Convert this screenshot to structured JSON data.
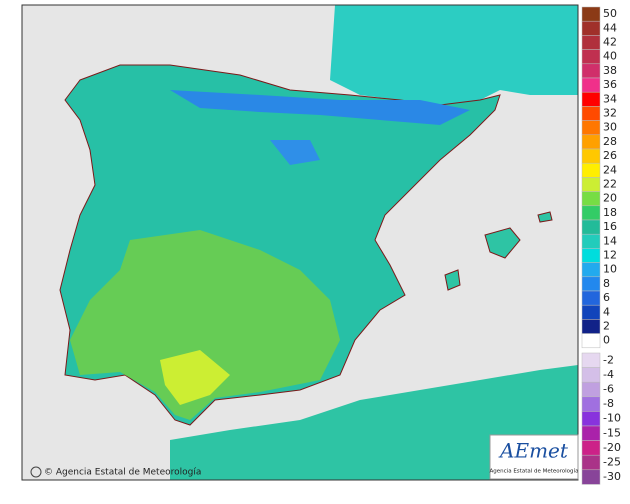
{
  "credit": "© Agencia Estatal de Meteorología",
  "logo": {
    "brand": "AEmet",
    "subtitle": "Agencia Estatal de Meteorología"
  },
  "legend": {
    "upper": [
      {
        "label": 50,
        "color": "#8b3a16"
      },
      {
        "label": 44,
        "color": "#a0302a"
      },
      {
        "label": 42,
        "color": "#b0303c"
      },
      {
        "label": 40,
        "color": "#c03050"
      },
      {
        "label": 38,
        "color": "#d02f6a"
      },
      {
        "label": 36,
        "color": "#f0308a"
      },
      {
        "label": 34,
        "color": "#ff0000"
      },
      {
        "label": 32,
        "color": "#ff4a00"
      },
      {
        "label": 30,
        "color": "#ff7700"
      },
      {
        "label": 28,
        "color": "#ffa000"
      },
      {
        "label": 26,
        "color": "#ffc800"
      },
      {
        "label": 24,
        "color": "#ffee00"
      },
      {
        "label": 22,
        "color": "#ccee33"
      },
      {
        "label": 20,
        "color": "#77dd44"
      },
      {
        "label": 18,
        "color": "#33cc66"
      },
      {
        "label": 16,
        "color": "#22bb99"
      },
      {
        "label": 14,
        "color": "#22ccbb"
      },
      {
        "label": 12,
        "color": "#00dddd"
      },
      {
        "label": 10,
        "color": "#22aaee"
      },
      {
        "label": 8,
        "color": "#2288ee"
      },
      {
        "label": 6,
        "color": "#2266dd"
      },
      {
        "label": 4,
        "color": "#1144bb"
      },
      {
        "label": 2,
        "color": "#112288"
      },
      {
        "label": 0,
        "color": "#ffffff"
      }
    ],
    "lower": [
      {
        "label": -2,
        "color": "#e6d8f0"
      },
      {
        "label": -4,
        "color": "#d4bfe8"
      },
      {
        "label": -6,
        "color": "#c0a0e0"
      },
      {
        "label": -8,
        "color": "#a070e0"
      },
      {
        "label": -10,
        "color": "#8833dd"
      },
      {
        "label": -15,
        "color": "#aa22aa"
      },
      {
        "label": -20,
        "color": "#cc2288"
      },
      {
        "label": -25,
        "color": "#aa3388"
      },
      {
        "label": -30,
        "color": "#884499"
      }
    ]
  }
}
